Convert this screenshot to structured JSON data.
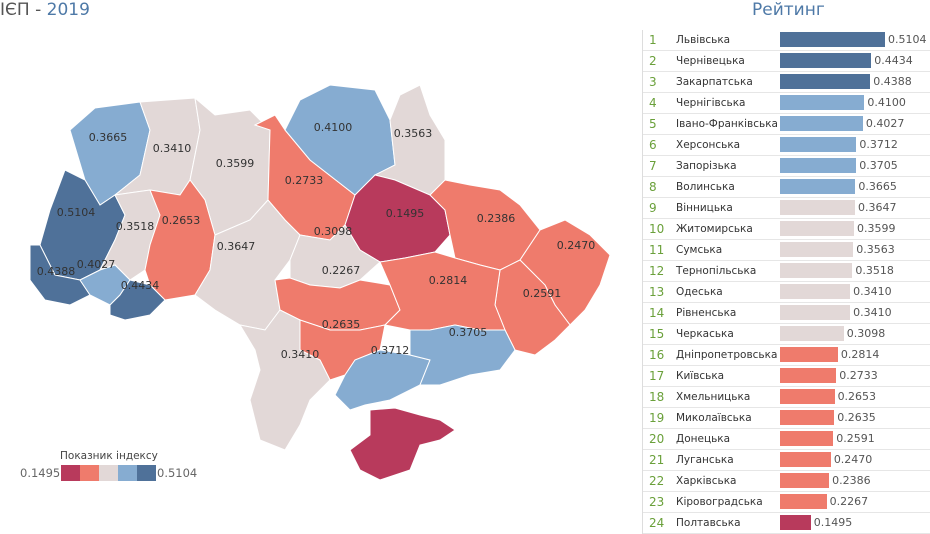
{
  "header": {
    "title": "ІЄП",
    "separator": " - ",
    "year": "2019",
    "ranking_title": "Рейтинг"
  },
  "colors": {
    "dark_blue": "#4f7199",
    "light_blue": "#86acd1",
    "neutral": "#e2d8d7",
    "salmon": "#ef7b6c",
    "crimson": "#b83a5c"
  },
  "legend": {
    "title": "Показник індексу",
    "min": "0.1495",
    "max": "0.5104"
  },
  "ranking": [
    {
      "rank": "1",
      "name": "Львівська",
      "value": 0.5104,
      "label": "0.5104",
      "cls": "dark_blue"
    },
    {
      "rank": "2",
      "name": "Чернівецька",
      "value": 0.4434,
      "label": "0.4434",
      "cls": "dark_blue"
    },
    {
      "rank": "3",
      "name": "Закарпатська",
      "value": 0.4388,
      "label": "0.4388",
      "cls": "dark_blue"
    },
    {
      "rank": "4",
      "name": "Чернігівська",
      "value": 0.41,
      "label": "0.4100",
      "cls": "light_blue"
    },
    {
      "rank": "5",
      "name": "Івано-Франківська",
      "value": 0.4027,
      "label": "0.4027",
      "cls": "light_blue"
    },
    {
      "rank": "6",
      "name": "Херсонська",
      "value": 0.3712,
      "label": "0.3712",
      "cls": "light_blue"
    },
    {
      "rank": "7",
      "name": "Запорізька",
      "value": 0.3705,
      "label": "0.3705",
      "cls": "light_blue"
    },
    {
      "rank": "8",
      "name": "Волинська",
      "value": 0.3665,
      "label": "0.3665",
      "cls": "light_blue"
    },
    {
      "rank": "9",
      "name": "Вінницька",
      "value": 0.3647,
      "label": "0.3647",
      "cls": "neutral"
    },
    {
      "rank": "10",
      "name": "Житомирська",
      "value": 0.3599,
      "label": "0.3599",
      "cls": "neutral"
    },
    {
      "rank": "11",
      "name": "Сумська",
      "value": 0.3563,
      "label": "0.3563",
      "cls": "neutral"
    },
    {
      "rank": "12",
      "name": "Тернопільська",
      "value": 0.3518,
      "label": "0.3518",
      "cls": "neutral"
    },
    {
      "rank": "13",
      "name": "Одеська",
      "value": 0.341,
      "label": "0.3410",
      "cls": "neutral"
    },
    {
      "rank": "14",
      "name": "Рівненська",
      "value": 0.341,
      "label": "0.3410",
      "cls": "neutral"
    },
    {
      "rank": "15",
      "name": "Черкаська",
      "value": 0.3098,
      "label": "0.3098",
      "cls": "neutral"
    },
    {
      "rank": "16",
      "name": "Дніпропетровська",
      "value": 0.2814,
      "label": "0.2814",
      "cls": "salmon"
    },
    {
      "rank": "17",
      "name": "Київська",
      "value": 0.2733,
      "label": "0.2733",
      "cls": "salmon"
    },
    {
      "rank": "18",
      "name": "Хмельницька",
      "value": 0.2653,
      "label": "0.2653",
      "cls": "salmon"
    },
    {
      "rank": "19",
      "name": "Миколаївська",
      "value": 0.2635,
      "label": "0.2635",
      "cls": "salmon"
    },
    {
      "rank": "20",
      "name": "Донецька",
      "value": 0.2591,
      "label": "0.2591",
      "cls": "salmon"
    },
    {
      "rank": "21",
      "name": "Луганська",
      "value": 0.247,
      "label": "0.2470",
      "cls": "salmon"
    },
    {
      "rank": "22",
      "name": "Харківська",
      "value": 0.2386,
      "label": "0.2386",
      "cls": "salmon"
    },
    {
      "rank": "23",
      "name": "Кіровоградська",
      "value": 0.2267,
      "label": "0.2267",
      "cls": "salmon"
    },
    {
      "rank": "24",
      "name": "Полтавська",
      "value": 0.1495,
      "label": "0.1495",
      "cls": "crimson"
    }
  ]
}
